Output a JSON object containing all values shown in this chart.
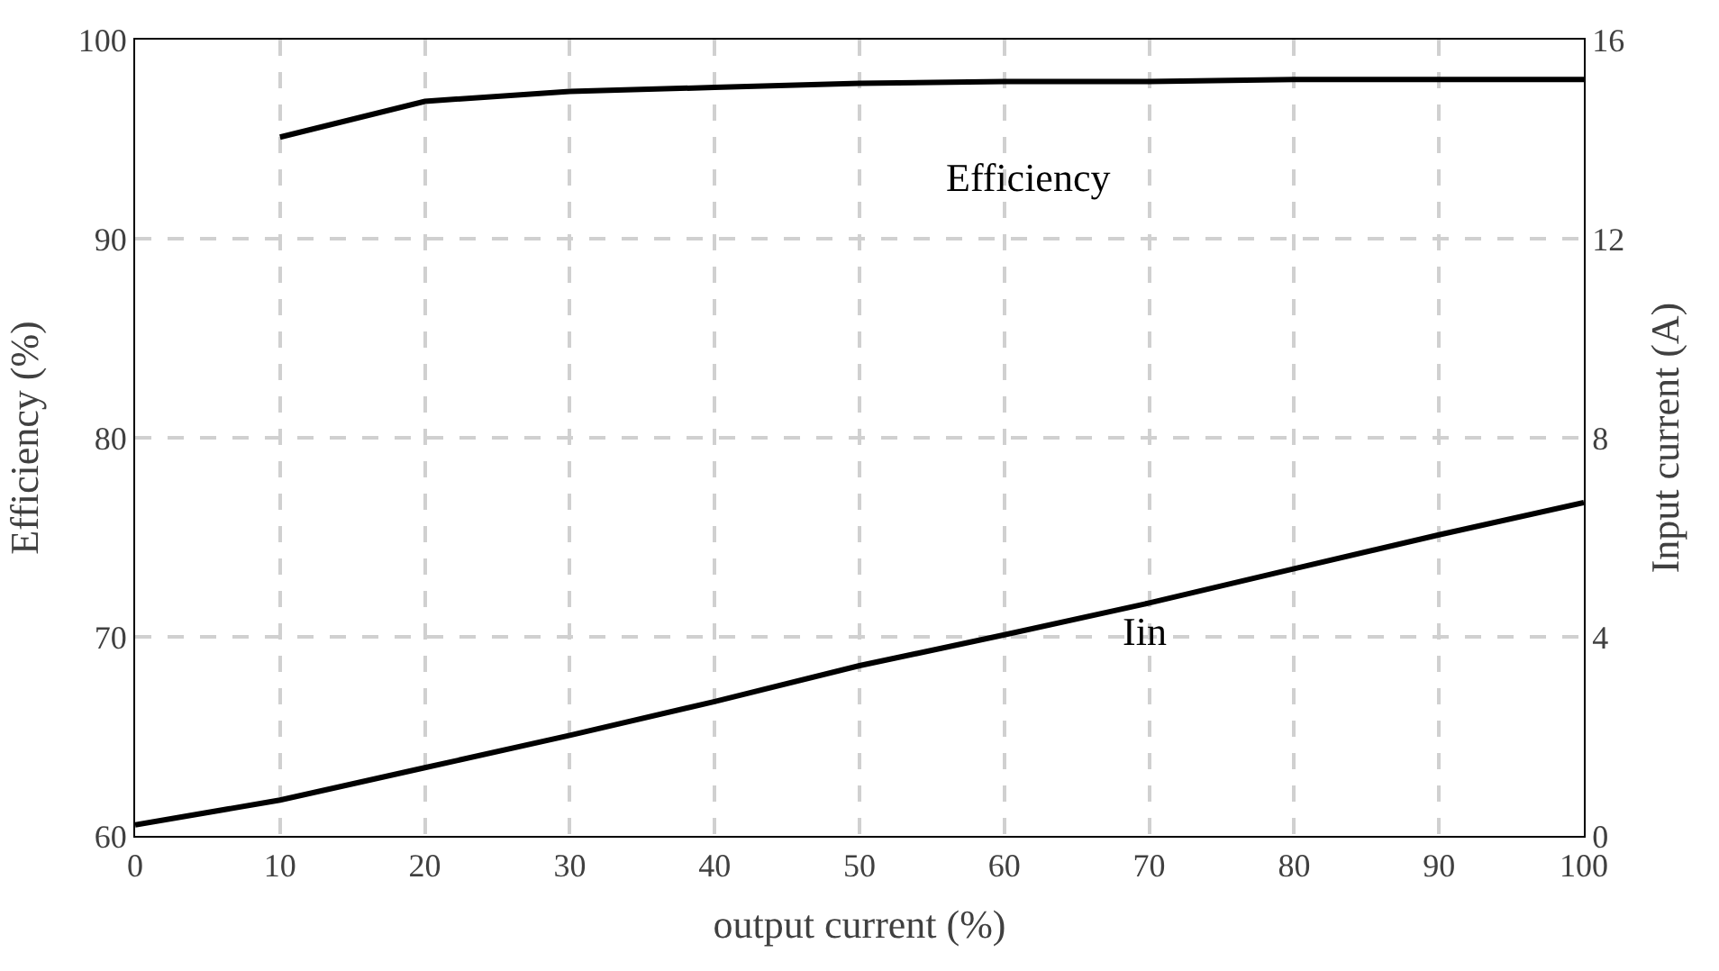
{
  "chart_data": {
    "type": "line",
    "xlabel": "output current (%)",
    "ylabel": "Efficiency (%)",
    "y2label": "Input current (A)",
    "x": [
      0,
      10,
      20,
      30,
      40,
      50,
      60,
      70,
      80,
      90,
      100
    ],
    "series": [
      {
        "color": "#000000",
        "values": [
          null,
          95.1,
          96.9,
          97.4,
          97.6,
          97.8,
          97.9,
          97.9,
          98.0,
          98.0,
          98.0
        ]
      },
      {
        "color": "#000000",
        "axis": "y2",
        "values": [
          0.22,
          0.72,
          1.37,
          2.02,
          2.7,
          3.42,
          4.04,
          4.68,
          5.37,
          6.05,
          6.7
        ]
      }
    ],
    "annotations": [
      "Efficiency",
      "Iin"
    ],
    "xlim": [
      0,
      100
    ],
    "xticks": [
      0,
      10,
      20,
      30,
      40,
      50,
      60,
      70,
      80,
      90,
      100
    ],
    "ylim": [
      60,
      100
    ],
    "yticks": [
      60,
      70,
      80,
      90,
      100
    ],
    "y2lim": [
      0,
      16
    ],
    "y2ticks": [
      0,
      4,
      8,
      12,
      16
    ],
    "grid": true,
    "marker": "none",
    "line_style": "solid"
  }
}
